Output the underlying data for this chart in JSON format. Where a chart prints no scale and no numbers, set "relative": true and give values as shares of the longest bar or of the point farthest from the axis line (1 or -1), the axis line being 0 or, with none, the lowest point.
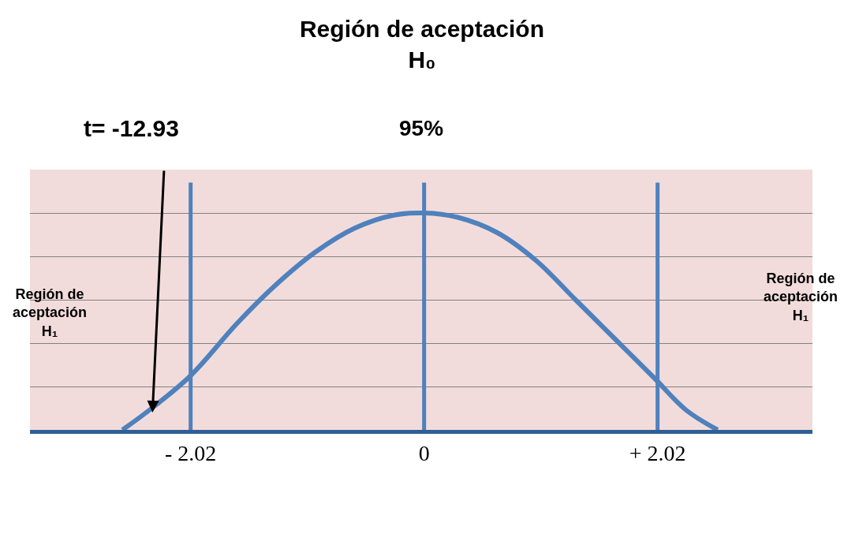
{
  "chart_data": {
    "type": "line",
    "title": "Región de aceptación",
    "subtitle": "H₀",
    "relative": true,
    "x": [
      -2.61,
      -2.38,
      -2.02,
      -1.62,
      -1.28,
      -0.94,
      -0.6,
      -0.26,
      0,
      0.29,
      0.63,
      0.97,
      1.31,
      1.65,
      1.99,
      2.27,
      2.54
    ],
    "series": [
      {
        "color": "#4f81bd",
        "values": [
          0,
          0.09,
          0.25,
          0.49,
          0.67,
          0.82,
          0.93,
          0.99,
          1,
          0.98,
          0.91,
          0.78,
          0.6,
          0.42,
          0.24,
          0.09,
          0
        ]
      }
    ],
    "xlim": [
      -3.41,
      3.36
    ],
    "xticks": [
      {
        "value": -2.02,
        "label": "- 2.02"
      },
      0,
      {
        "value": 2.02,
        "label": "+ 2.02"
      }
    ],
    "ref_lines": [
      {
        "axis": "x",
        "value": -2.02,
        "color": "#4f81bd"
      },
      {
        "axis": "x",
        "value": 0,
        "color": "#4f81bd"
      },
      {
        "axis": "x",
        "value": 2.02,
        "color": "#4f81bd"
      }
    ],
    "annotations": [
      "95%",
      "t= -12.93",
      "Región de\naceptación\nH₁",
      "Región de\naceptación\nH₁"
    ],
    "grid": "y",
    "marker": "none",
    "line_style": "solid"
  }
}
